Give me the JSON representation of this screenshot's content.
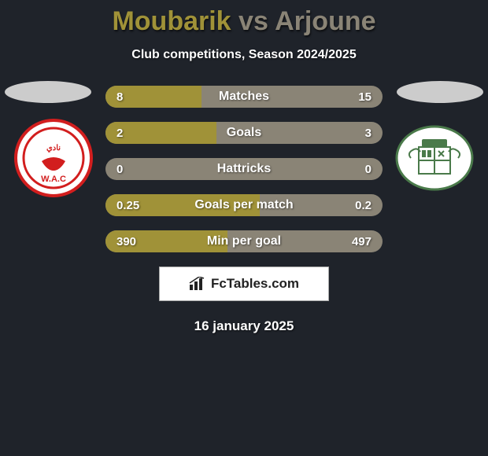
{
  "background_color": "#1f232a",
  "title": {
    "player1": "Moubarik",
    "vs": "vs",
    "player2": "Arjoune",
    "player1_color": "#a09238",
    "vs_color": "#8a8476",
    "player2_color": "#8a8476"
  },
  "subtitle": "Club competitions, Season 2024/2025",
  "badges": {
    "left": {
      "bg": "#ffffff",
      "stroke": "#d21e1e"
    },
    "right": {
      "bg": "#ffffff",
      "stroke": "#4a7a4a"
    }
  },
  "bar_style": {
    "fill_color": "#a09238",
    "track_color": "#8a8476",
    "height": 28,
    "gap": 18,
    "radius": 14
  },
  "bars": [
    {
      "label": "Matches",
      "left": "8",
      "right": "15",
      "left_frac": 0.348
    },
    {
      "label": "Goals",
      "left": "2",
      "right": "3",
      "left_frac": 0.4
    },
    {
      "label": "Hattricks",
      "left": "0",
      "right": "0",
      "left_frac": 0.0
    },
    {
      "label": "Goals per match",
      "left": "0.25",
      "right": "0.2",
      "left_frac": 0.556
    },
    {
      "label": "Min per goal",
      "left": "390",
      "right": "497",
      "left_frac": 0.44
    }
  ],
  "brand": "FcTables.com",
  "date": "16 january 2025"
}
